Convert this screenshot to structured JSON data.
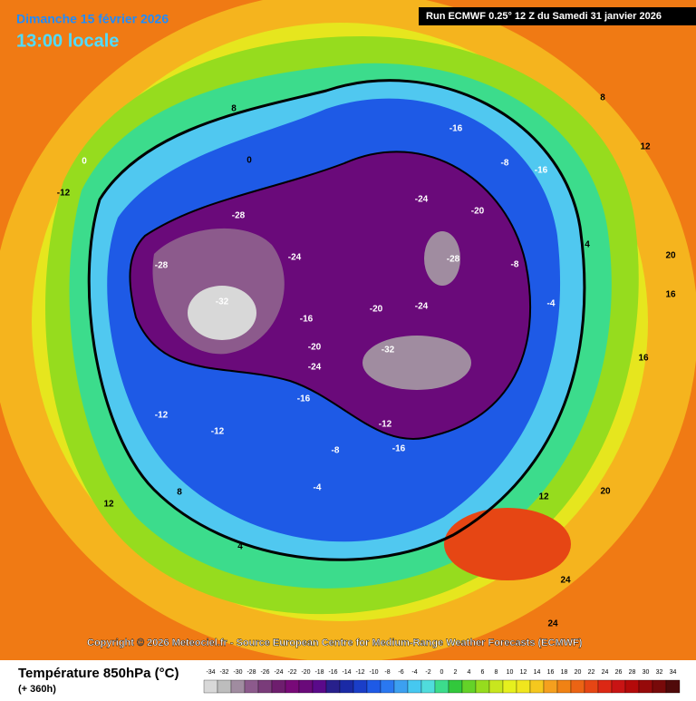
{
  "header": {
    "date": "Dimanche 15 février 2026",
    "time": "13:00 locale",
    "run": "Run ECMWF 0.25° 12 Z du Samedi 31 janvier 2026"
  },
  "copyright": "Copyright © 2026 Meteociel.fr - Source European Centre for Medium-Range Weather Forecasts (ECMWF)",
  "legend": {
    "title": "Température 850hPa (°C)",
    "subtitle": "(+ 360h)",
    "ticks": [
      -34,
      -32,
      -30,
      -28,
      -26,
      -24,
      -22,
      -20,
      -18,
      -16,
      -14,
      -12,
      -10,
      -8,
      -6,
      -4,
      -2,
      0,
      2,
      4,
      6,
      8,
      10,
      12,
      14,
      16,
      18,
      20,
      22,
      24,
      26,
      28,
      30,
      32,
      34
    ],
    "colors": [
      "#d8d8d8",
      "#bdbdbd",
      "#a08ca0",
      "#8c5a8c",
      "#7a3c7a",
      "#6e1e6e",
      "#780a78",
      "#6a0a7a",
      "#5a0a8a",
      "#28208c",
      "#1a2aa6",
      "#1a3ec8",
      "#1e5ae6",
      "#2a78f0",
      "#3ca0f0",
      "#46c8f0",
      "#50dcdc",
      "#3cdc8c",
      "#32c83c",
      "#64d228",
      "#96dc1e",
      "#c8e61e",
      "#e6f01e",
      "#f0e61e",
      "#f5c81e",
      "#f5a01e",
      "#f08214",
      "#eb6414",
      "#e64614",
      "#dc2814",
      "#c81414",
      "#b40a0a",
      "#960a0a",
      "#780a0a",
      "#500a0a"
    ]
  },
  "contour_labels": [
    "-16",
    "-24",
    "-20",
    "-28",
    "-24",
    "-28",
    "-32",
    "-24",
    "-16",
    "-20",
    "-24",
    "-28",
    "-20",
    "-32",
    "-16",
    "-12",
    "-12",
    "-8",
    "-16",
    "-4",
    "-12",
    "-8",
    "-16",
    "-8",
    "-4",
    "0",
    "4",
    "4",
    "8",
    "8",
    "12",
    "12",
    "16",
    "16",
    "20",
    "20",
    "24",
    "24",
    "12",
    "8",
    "0",
    "-12"
  ]
}
